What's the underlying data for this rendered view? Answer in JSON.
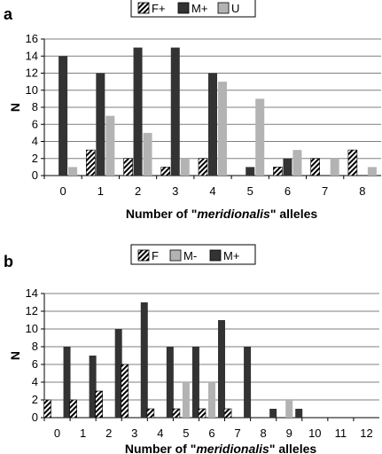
{
  "chart_data": [
    {
      "type": "bar",
      "panel_label": "a",
      "xlabel_prefix": "Number of \"",
      "xlabel_italic": "meridionalis",
      "xlabel_suffix": "\" alleles",
      "ylabel": "N",
      "categories": [
        "0",
        "1",
        "2",
        "3",
        "4",
        "5",
        "6",
        "7",
        "8"
      ],
      "ylim": [
        0,
        16
      ],
      "yticks": [
        0,
        2,
        4,
        6,
        8,
        10,
        12,
        14,
        16
      ],
      "grid": true,
      "legend_position": "top-center",
      "series": [
        {
          "name": "F+",
          "style": "hatched",
          "values": [
            0,
            3,
            2,
            1,
            2,
            0,
            1,
            2,
            3
          ]
        },
        {
          "name": "M+",
          "style": "solid",
          "color": "#333333",
          "values": [
            14,
            12,
            15,
            15,
            12,
            1,
            2,
            0,
            0
          ]
        },
        {
          "name": "U",
          "style": "solid",
          "color": "#b3b3b3",
          "values": [
            1,
            7,
            5,
            2,
            11,
            9,
            3,
            2,
            1
          ]
        }
      ]
    },
    {
      "type": "bar",
      "panel_label": "b",
      "xlabel_prefix": "Number of \"",
      "xlabel_italic": "meridionalis",
      "xlabel_suffix": "\" alleles",
      "ylabel": "N",
      "categories": [
        "0",
        "1",
        "2",
        "3",
        "4",
        "5",
        "6",
        "7",
        "8",
        "9",
        "10",
        "11",
        "12"
      ],
      "ylim": [
        0,
        14
      ],
      "yticks": [
        0,
        2,
        4,
        6,
        8,
        10,
        12,
        14
      ],
      "grid": true,
      "legend_position": "top-center",
      "series": [
        {
          "name": "F",
          "style": "hatched",
          "values": [
            2,
            2,
            3,
            6,
            1,
            1,
            1,
            1,
            0,
            0,
            0,
            0,
            0
          ]
        },
        {
          "name": "M-",
          "style": "solid",
          "color": "#b3b3b3",
          "values": [
            0,
            0,
            0,
            0,
            0,
            4,
            4,
            0,
            0,
            2,
            0,
            0,
            0
          ]
        },
        {
          "name": "M+",
          "style": "solid",
          "color": "#333333",
          "values": [
            8,
            7,
            10,
            13,
            8,
            8,
            11,
            8,
            1,
            1,
            0,
            0,
            0
          ]
        }
      ]
    }
  ]
}
